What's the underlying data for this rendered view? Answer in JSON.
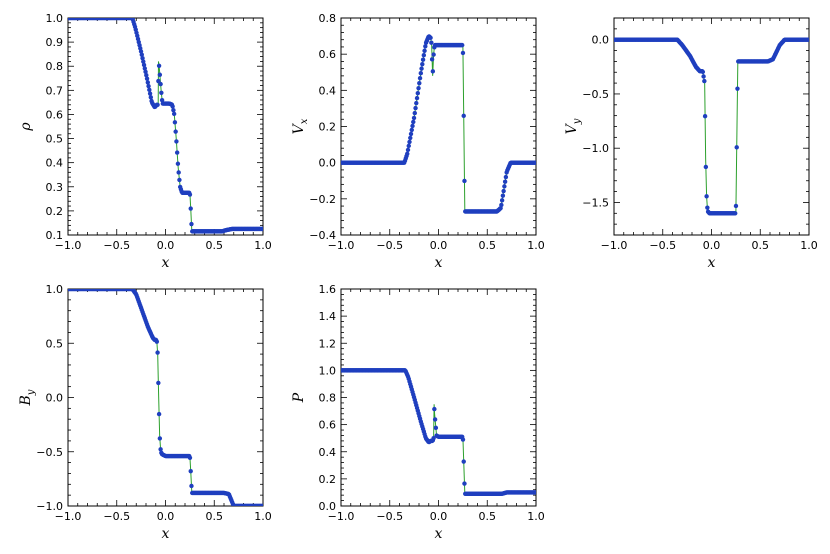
{
  "chart_data": [
    {
      "type": "line",
      "xlabel": "x",
      "ylabel": "ρ",
      "xlim": [
        -1.0,
        1.0
      ],
      "ylim": [
        0.1,
        1.0
      ],
      "xticks": [
        "−1.0",
        "−0.5",
        "0.0",
        "0.5",
        "1.0"
      ],
      "yticks": [
        "0.1",
        "0.2",
        "0.3",
        "0.4",
        "0.5",
        "0.6",
        "0.7",
        "0.8",
        "0.9",
        "1.0"
      ],
      "grid": false,
      "series": [
        {
          "color": "#1f3fbf",
          "line_color": "#2ca02c",
          "x": [
            -1.0,
            -0.34,
            -0.31,
            -0.25,
            -0.19,
            -0.14,
            -0.11,
            -0.09,
            -0.075,
            -0.072,
            -0.065,
            -0.055,
            -0.045,
            -0.04,
            -0.035,
            -0.03,
            0.0,
            0.04,
            0.07,
            0.09,
            0.11,
            0.13,
            0.15,
            0.17,
            0.2,
            0.25,
            0.26,
            0.27,
            0.3,
            0.4,
            0.58,
            0.62,
            0.68,
            1.0
          ],
          "y": [
            1.0,
            1.0,
            0.96,
            0.86,
            0.75,
            0.65,
            0.63,
            0.64,
            0.64,
            0.82,
            0.8,
            0.75,
            0.7,
            0.68,
            0.66,
            0.645,
            0.645,
            0.645,
            0.64,
            0.6,
            0.5,
            0.38,
            0.3,
            0.275,
            0.275,
            0.275,
            0.2,
            0.115,
            0.115,
            0.115,
            0.115,
            0.12,
            0.125,
            0.125
          ]
        }
      ]
    },
    {
      "type": "line",
      "xlabel": "x",
      "ylabel": "V_x",
      "xlim": [
        -1.0,
        1.0
      ],
      "ylim": [
        -0.4,
        0.8
      ],
      "xticks": [
        "−1.0",
        "−0.5",
        "0.0",
        "0.5",
        "1.0"
      ],
      "yticks": [
        "−0.4",
        "−0.2",
        "0.0",
        "0.2",
        "0.4",
        "0.6",
        "0.8"
      ],
      "grid": false,
      "series": [
        {
          "color": "#1f3fbf",
          "line_color": "#2ca02c",
          "x": [
            -1.0,
            -0.35,
            -0.32,
            -0.25,
            -0.18,
            -0.13,
            -0.1,
            -0.08,
            -0.07,
            -0.065,
            -0.06,
            -0.05,
            -0.04,
            0.0,
            0.25,
            0.26,
            0.27,
            0.3,
            0.6,
            0.64,
            0.7,
            0.74,
            1.0
          ],
          "y": [
            0.0,
            0.0,
            0.05,
            0.25,
            0.5,
            0.66,
            0.7,
            0.69,
            0.65,
            0.56,
            0.48,
            0.6,
            0.65,
            0.65,
            0.65,
            0.2,
            -0.27,
            -0.27,
            -0.27,
            -0.25,
            -0.05,
            0.0,
            0.0
          ]
        }
      ]
    },
    {
      "type": "line",
      "xlabel": "x",
      "ylabel": "V_y",
      "xlim": [
        -1.0,
        1.0
      ],
      "ylim": [
        -1.8,
        0.2
      ],
      "xticks": [
        "−1.0",
        "−0.5",
        "0.0",
        "0.5",
        "1.0"
      ],
      "yticks": [
        "−1.5",
        "−1.0",
        "−0.5",
        "0.0"
      ],
      "grid": false,
      "series": [
        {
          "color": "#1f3fbf",
          "line_color": "#2ca02c",
          "x": [
            -1.0,
            -0.35,
            -0.3,
            -0.22,
            -0.16,
            -0.12,
            -0.09,
            -0.07,
            -0.06,
            -0.05,
            -0.04,
            -0.02,
            0.0,
            0.25,
            0.26,
            0.27,
            0.3,
            0.58,
            0.63,
            0.7,
            0.75,
            1.0
          ],
          "y": [
            0.0,
            0.0,
            -0.05,
            -0.15,
            -0.25,
            -0.29,
            -0.29,
            -0.4,
            -1.1,
            -1.45,
            -1.58,
            -1.6,
            -1.6,
            -1.6,
            -0.9,
            -0.2,
            -0.2,
            -0.2,
            -0.18,
            -0.05,
            0.0,
            0.0
          ]
        }
      ]
    },
    {
      "type": "line",
      "xlabel": "x",
      "ylabel": "B_y",
      "xlim": [
        -1.0,
        1.0
      ],
      "ylim": [
        -1.0,
        1.0
      ],
      "xticks": [
        "−1.0",
        "−0.5",
        "0.0",
        "0.5",
        "1.0"
      ],
      "yticks": [
        "−1.0",
        "−0.5",
        "0.0",
        "0.5",
        "1.0"
      ],
      "grid": false,
      "series": [
        {
          "color": "#1f3fbf",
          "line_color": "#2ca02c",
          "x": [
            -1.0,
            -0.34,
            -0.3,
            -0.24,
            -0.18,
            -0.13,
            -0.11,
            -0.09,
            -0.08,
            -0.07,
            -0.06,
            -0.05,
            -0.04,
            -0.02,
            0.0,
            0.25,
            0.26,
            0.27,
            0.3,
            0.6,
            0.65,
            0.7,
            1.0
          ],
          "y": [
            1.0,
            1.0,
            0.95,
            0.8,
            0.65,
            0.55,
            0.53,
            0.53,
            0.4,
            0.0,
            -0.35,
            -0.48,
            -0.52,
            -0.53,
            -0.54,
            -0.54,
            -0.7,
            -0.88,
            -0.88,
            -0.88,
            -0.89,
            -1.0,
            -1.0
          ]
        }
      ]
    },
    {
      "type": "line",
      "xlabel": "x",
      "ylabel": "P",
      "xlim": [
        -1.0,
        1.0
      ],
      "ylim": [
        0.0,
        1.6
      ],
      "xticks": [
        "−1.0",
        "−0.5",
        "0.0",
        "0.5",
        "1.0"
      ],
      "yticks": [
        "0.0",
        "0.2",
        "0.4",
        "0.6",
        "0.8",
        "1.0",
        "1.2",
        "1.4",
        "1.6"
      ],
      "grid": false,
      "series": [
        {
          "color": "#1f3fbf",
          "line_color": "#2ca02c",
          "x": [
            -1.0,
            -0.34,
            -0.31,
            -0.25,
            -0.18,
            -0.13,
            -0.1,
            -0.08,
            -0.06,
            -0.05,
            -0.045,
            -0.04,
            -0.03,
            -0.02,
            0.0,
            0.25,
            0.26,
            0.27,
            0.3,
            0.6,
            0.65,
            0.7,
            1.0
          ],
          "y": [
            1.0,
            1.0,
            0.95,
            0.8,
            0.62,
            0.5,
            0.47,
            0.48,
            0.48,
            0.5,
            0.75,
            0.68,
            0.6,
            0.52,
            0.51,
            0.51,
            0.3,
            0.09,
            0.09,
            0.09,
            0.09,
            0.1,
            0.1
          ]
        }
      ]
    }
  ]
}
